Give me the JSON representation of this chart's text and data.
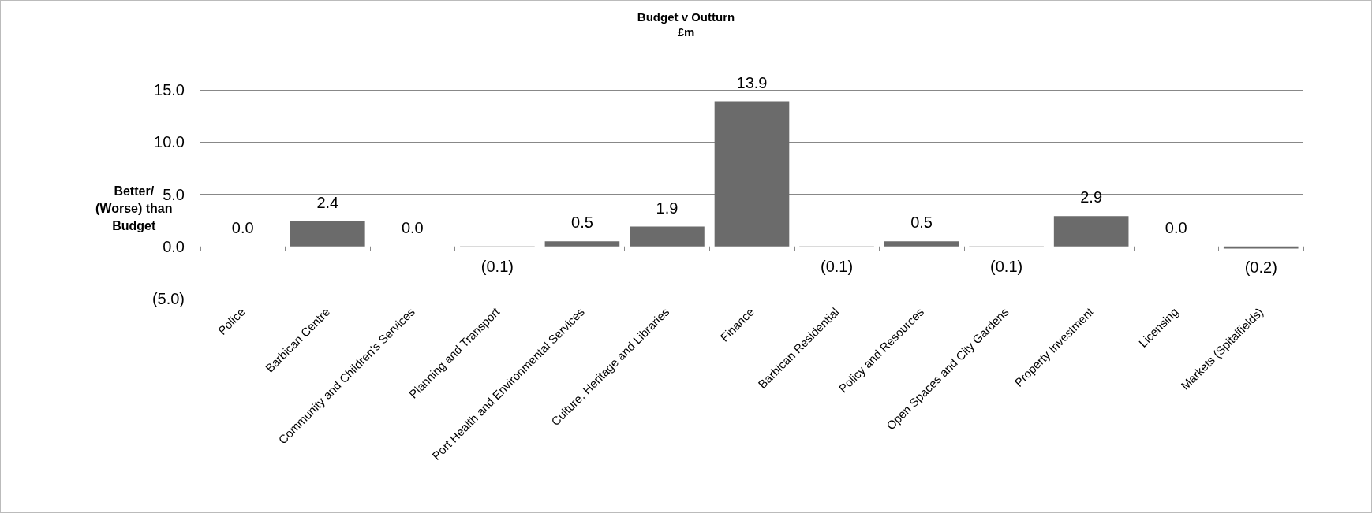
{
  "chart_data": {
    "type": "bar",
    "title": "Budget v Outturn",
    "subtitle": "£m",
    "ylabel": "Better/\n(Worse) than\nBudget",
    "categories": [
      "Police",
      "Barbican Centre",
      "Community and Children's Services",
      "Planning and Transport",
      "Port Health and Environmental Services",
      "Culture, Heritage and Libraries",
      "Finance",
      "Barbican Residential",
      "Policy and Resources",
      "Open Spaces and City Gardens",
      "Property Investment",
      "Licensing",
      "Markets (Spitalfields)"
    ],
    "values": [
      0.0,
      2.4,
      0.0,
      -0.1,
      0.5,
      1.9,
      13.9,
      -0.1,
      0.5,
      -0.1,
      2.9,
      0.0,
      -0.2
    ],
    "value_labels": [
      "0.0",
      "2.4",
      "0.0",
      "(0.1)",
      "0.5",
      "1.9",
      "13.9",
      "(0.1)",
      "0.5",
      "(0.1)",
      "2.9",
      "0.0",
      "(0.2)"
    ],
    "color": "#6b6b6b",
    "ylim": [
      -5,
      15
    ],
    "yticks": [
      {
        "value": -5,
        "label": "(5.0)"
      },
      {
        "value": 0,
        "label": "0.0"
      },
      {
        "value": 5,
        "label": "5.0"
      },
      {
        "value": 10,
        "label": "10.0"
      },
      {
        "value": 15,
        "label": "15.0"
      }
    ],
    "grid": "y"
  }
}
